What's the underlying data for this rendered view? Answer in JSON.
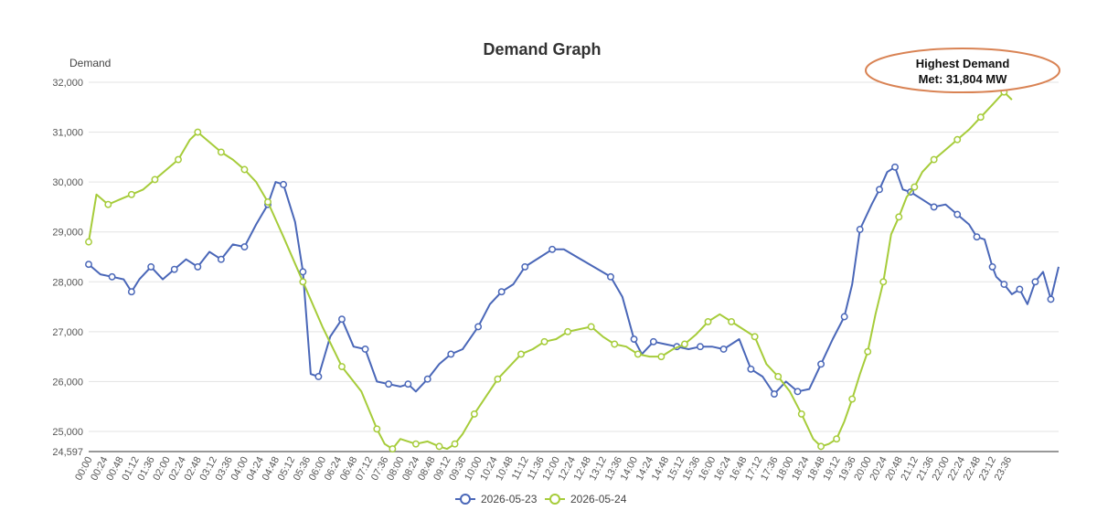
{
  "chart_data": {
    "type": "line",
    "title": "Demand Graph",
    "ylabel": "Demand",
    "xlabel": "",
    "ylim": [
      24597,
      32000
    ],
    "yticks": [
      24597,
      25000,
      26000,
      27000,
      28000,
      29000,
      30000,
      31000,
      32000
    ],
    "ytick_labels": [
      "24,597",
      "25,000",
      "26,000",
      "27,000",
      "28,000",
      "29,000",
      "30,000",
      "31,000",
      "32,000"
    ],
    "x_ticks": [
      "00:00",
      "00:24",
      "00:48",
      "01:12",
      "01:36",
      "02:00",
      "02:24",
      "02:48",
      "03:12",
      "03:36",
      "04:00",
      "04:24",
      "04:48",
      "05:12",
      "05:36",
      "06:00",
      "06:24",
      "06:48",
      "07:12",
      "07:36",
      "08:00",
      "08:24",
      "08:48",
      "09:12",
      "09:36",
      "10:00",
      "10:24",
      "10:48",
      "11:12",
      "11:36",
      "12:00",
      "12:24",
      "12:48",
      "13:12",
      "13:36",
      "14:00",
      "14:24",
      "14:48",
      "15:12",
      "15:36",
      "16:00",
      "16:24",
      "16:48",
      "17:12",
      "17:36",
      "18:00",
      "18:24",
      "18:48",
      "19:12",
      "19:36",
      "20:00",
      "20:24",
      "20:48",
      "21:12",
      "21:36",
      "22:00",
      "22:24",
      "22:48",
      "23:12",
      "23:36"
    ],
    "grid": "horizontal",
    "legend_position": "bottom",
    "series": [
      {
        "name": "2026-05-23",
        "color": "#4a67b8",
        "points": [
          [
            0,
            28350
          ],
          [
            18,
            28150
          ],
          [
            36,
            28100
          ],
          [
            54,
            28050
          ],
          [
            66,
            27800
          ],
          [
            78,
            28050
          ],
          [
            96,
            28300
          ],
          [
            114,
            28050
          ],
          [
            132,
            28250
          ],
          [
            150,
            28450
          ],
          [
            168,
            28300
          ],
          [
            186,
            28600
          ],
          [
            204,
            28450
          ],
          [
            222,
            28750
          ],
          [
            240,
            28700
          ],
          [
            258,
            29150
          ],
          [
            276,
            29550
          ],
          [
            288,
            30000
          ],
          [
            300,
            29950
          ],
          [
            318,
            29200
          ],
          [
            330,
            28200
          ],
          [
            342,
            26150
          ],
          [
            354,
            26100
          ],
          [
            372,
            26900
          ],
          [
            390,
            27250
          ],
          [
            408,
            26700
          ],
          [
            426,
            26650
          ],
          [
            444,
            26000
          ],
          [
            462,
            25950
          ],
          [
            480,
            25900
          ],
          [
            492,
            25950
          ],
          [
            504,
            25800
          ],
          [
            522,
            26050
          ],
          [
            540,
            26350
          ],
          [
            558,
            26550
          ],
          [
            576,
            26650
          ],
          [
            600,
            27100
          ],
          [
            618,
            27550
          ],
          [
            636,
            27800
          ],
          [
            654,
            27950
          ],
          [
            672,
            28300
          ],
          [
            696,
            28500
          ],
          [
            714,
            28650
          ],
          [
            732,
            28650
          ],
          [
            804,
            28100
          ],
          [
            822,
            27700
          ],
          [
            840,
            26850
          ],
          [
            852,
            26550
          ],
          [
            870,
            26800
          ],
          [
            888,
            26750
          ],
          [
            906,
            26700
          ],
          [
            924,
            26650
          ],
          [
            942,
            26700
          ],
          [
            960,
            26700
          ],
          [
            978,
            26650
          ],
          [
            1002,
            26850
          ],
          [
            1020,
            26250
          ],
          [
            1038,
            26100
          ],
          [
            1056,
            25750
          ],
          [
            1074,
            26000
          ],
          [
            1092,
            25800
          ],
          [
            1110,
            25850
          ],
          [
            1128,
            26350
          ],
          [
            1146,
            26850
          ],
          [
            1164,
            27300
          ],
          [
            1176,
            27950
          ],
          [
            1188,
            29050
          ],
          [
            1206,
            29550
          ],
          [
            1218,
            29850
          ],
          [
            1230,
            30200
          ],
          [
            1242,
            30300
          ],
          [
            1254,
            29850
          ],
          [
            1266,
            29800
          ],
          [
            1284,
            29650
          ],
          [
            1302,
            29500
          ],
          [
            1320,
            29550
          ],
          [
            1338,
            29350
          ],
          [
            1356,
            29150
          ],
          [
            1368,
            28900
          ],
          [
            1380,
            28850
          ],
          [
            1392,
            28300
          ],
          [
            1398,
            28100
          ],
          [
            1410,
            27950
          ],
          [
            1422,
            27750
          ],
          [
            1434,
            27850
          ],
          [
            1446,
            27550
          ],
          [
            1458,
            28000
          ],
          [
            1470,
            28200
          ],
          [
            1482,
            27650
          ],
          [
            1494,
            28300
          ]
        ]
      },
      {
        "name": "2026-05-24",
        "color": "#a6cc3a",
        "points": [
          [
            0,
            28800
          ],
          [
            12,
            29750
          ],
          [
            30,
            29550
          ],
          [
            48,
            29650
          ],
          [
            66,
            29750
          ],
          [
            84,
            29850
          ],
          [
            102,
            30050
          ],
          [
            120,
            30250
          ],
          [
            138,
            30450
          ],
          [
            156,
            30850
          ],
          [
            168,
            31000
          ],
          [
            186,
            30800
          ],
          [
            204,
            30600
          ],
          [
            222,
            30450
          ],
          [
            240,
            30250
          ],
          [
            258,
            30000
          ],
          [
            276,
            29600
          ],
          [
            300,
            28900
          ],
          [
            330,
            28000
          ],
          [
            360,
            27100
          ],
          [
            390,
            26300
          ],
          [
            420,
            25800
          ],
          [
            444,
            25050
          ],
          [
            456,
            24750
          ],
          [
            468,
            24650
          ],
          [
            480,
            24850
          ],
          [
            504,
            24750
          ],
          [
            522,
            24800
          ],
          [
            540,
            24700
          ],
          [
            552,
            24650
          ],
          [
            564,
            24750
          ],
          [
            576,
            24950
          ],
          [
            594,
            25350
          ],
          [
            612,
            25700
          ],
          [
            630,
            26050
          ],
          [
            648,
            26300
          ],
          [
            666,
            26550
          ],
          [
            684,
            26650
          ],
          [
            702,
            26800
          ],
          [
            720,
            26850
          ],
          [
            738,
            27000
          ],
          [
            756,
            27050
          ],
          [
            774,
            27100
          ],
          [
            792,
            26900
          ],
          [
            810,
            26750
          ],
          [
            828,
            26700
          ],
          [
            846,
            26550
          ],
          [
            864,
            26500
          ],
          [
            882,
            26500
          ],
          [
            900,
            26650
          ],
          [
            918,
            26750
          ],
          [
            936,
            26950
          ],
          [
            954,
            27200
          ],
          [
            972,
            27350
          ],
          [
            990,
            27200
          ],
          [
            1008,
            27050
          ],
          [
            1026,
            26900
          ],
          [
            1044,
            26350
          ],
          [
            1062,
            26100
          ],
          [
            1080,
            25800
          ],
          [
            1098,
            25350
          ],
          [
            1116,
            24850
          ],
          [
            1128,
            24700
          ],
          [
            1140,
            24750
          ],
          [
            1152,
            24850
          ],
          [
            1164,
            25200
          ],
          [
            1176,
            25650
          ],
          [
            1188,
            26150
          ],
          [
            1200,
            26600
          ],
          [
            1212,
            27350
          ],
          [
            1224,
            28000
          ],
          [
            1236,
            28950
          ],
          [
            1248,
            29300
          ],
          [
            1260,
            29700
          ],
          [
            1272,
            29900
          ],
          [
            1284,
            30200
          ],
          [
            1302,
            30450
          ],
          [
            1320,
            30650
          ],
          [
            1338,
            30850
          ],
          [
            1356,
            31050
          ],
          [
            1374,
            31300
          ],
          [
            1392,
            31550
          ],
          [
            1410,
            31804
          ],
          [
            1422,
            31650
          ]
        ]
      }
    ],
    "annotations": [
      {
        "line1": "Highest Demand",
        "line2": "Met: 31,804 MW",
        "x": 1410,
        "y": 31804
      }
    ]
  }
}
